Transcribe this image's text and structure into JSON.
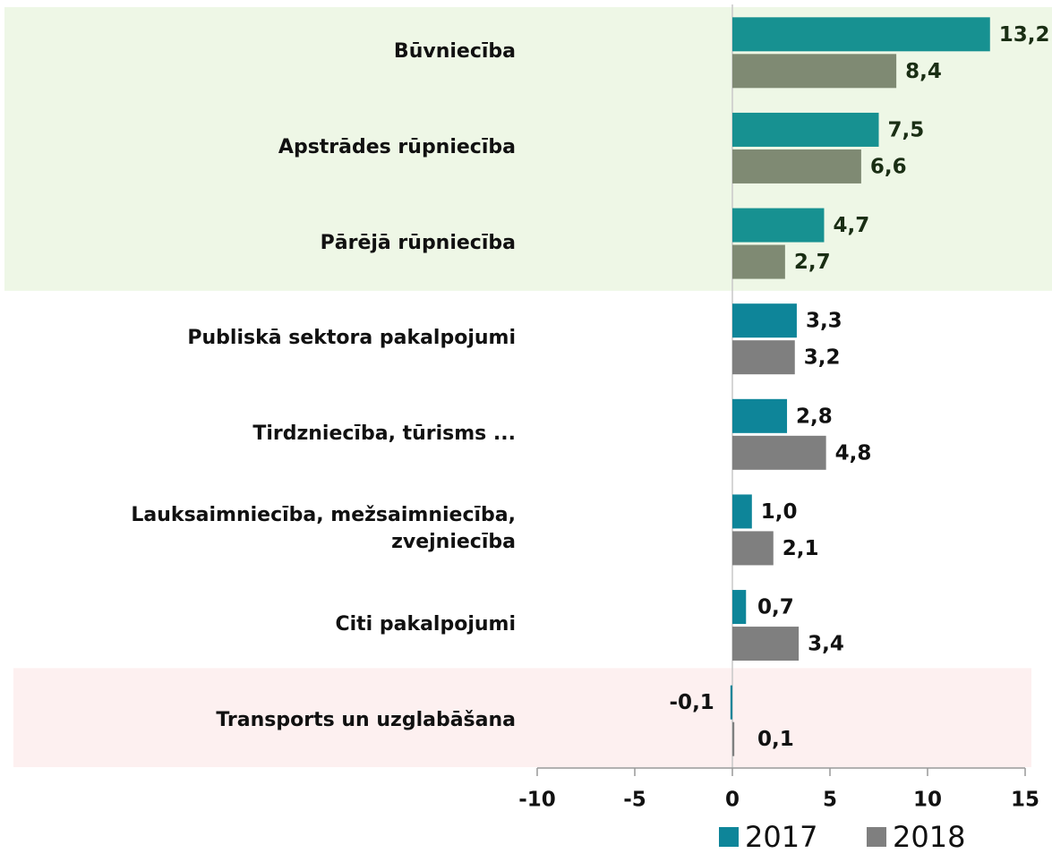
{
  "chart_data": {
    "type": "hbar",
    "categories": [
      "Būvniecība",
      "Apstrādes rūpniecība",
      "Pārējā rūpniecība",
      "Publiskā sektora pakalpojumi",
      "Tirdzniecība, tūrisms ...",
      "Lauksaimniecība, mežsaimniecība, zvejniecība",
      "Citi pakalpojumi",
      "Transports un uzglabāšana"
    ],
    "series": [
      {
        "name": "2017",
        "color": "#0e8599",
        "colors": [
          "#179191",
          "#179191",
          "#179191",
          "#0e8599",
          "#0e8599",
          "#0e8599",
          "#0e8599",
          "#0e8599"
        ],
        "values": [
          13.2,
          7.5,
          4.7,
          3.3,
          2.8,
          1.0,
          0.7,
          -0.1
        ],
        "value_labels": [
          "13,2",
          "7,5",
          "4,7",
          "3,3",
          "2,8",
          "1,0",
          "0,7",
          "-0,1"
        ]
      },
      {
        "name": "2018",
        "color": "#7f7f7f",
        "colors": [
          "#7f8a73",
          "#7f8a73",
          "#7f8a73",
          "#7f7f7f",
          "#7f7f7f",
          "#7f7f7f",
          "#7f7f7f",
          "#7f7f7f"
        ],
        "values": [
          8.4,
          6.6,
          2.7,
          3.2,
          4.8,
          2.1,
          3.4,
          0.1
        ],
        "value_labels": [
          "8,4",
          "6,6",
          "2,7",
          "3,2",
          "4,8",
          "2,1",
          "3,4",
          "0,1"
        ]
      }
    ],
    "xlim": [
      -10,
      15
    ],
    "xticks": [
      -10,
      -5,
      0,
      5,
      10,
      15
    ],
    "legend": "bottom"
  }
}
